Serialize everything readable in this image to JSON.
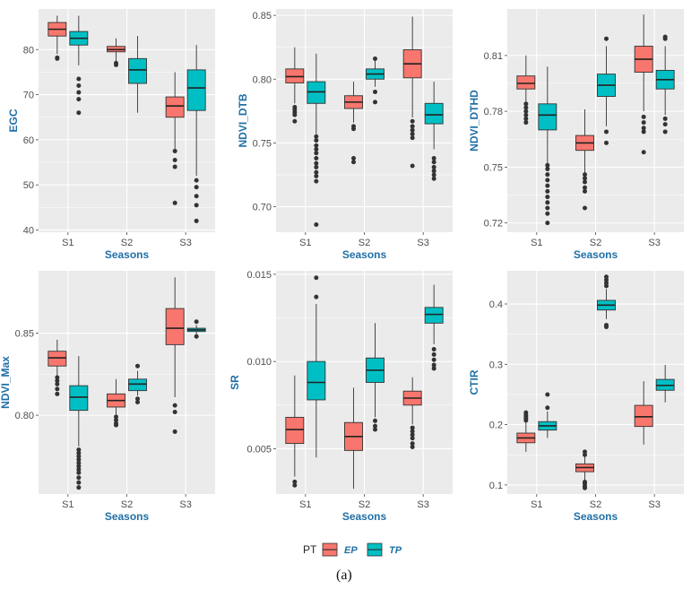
{
  "chart_data": [
    {
      "type": "box",
      "xlabel": "Seasons",
      "ylabel": "EGC",
      "categories": [
        "S1",
        "S2",
        "S3"
      ],
      "ylim": [
        39.5,
        89
      ],
      "yticks": [
        40,
        50,
        60,
        70,
        80
      ],
      "tick_decimals": 0,
      "series": [
        {
          "name": "EP",
          "boxes": [
            {
              "whisker_low": 79,
              "q1": 83,
              "median": 84.5,
              "q3": 86,
              "whisker_high": 87.5,
              "outliers": [
                78,
                78.2
              ]
            },
            {
              "whisker_low": 77.2,
              "q1": 79.5,
              "median": 80,
              "q3": 80.7,
              "whisker_high": 82.5,
              "outliers": [
                77,
                76.6
              ]
            },
            {
              "whisker_low": 58,
              "q1": 65,
              "median": 67.5,
              "q3": 69.5,
              "whisker_high": 75,
              "outliers": [
                57.5,
                55.5,
                54,
                46
              ]
            }
          ]
        },
        {
          "name": "TP",
          "boxes": [
            {
              "whisker_low": 76.5,
              "q1": 81,
              "median": 82.5,
              "q3": 84,
              "whisker_high": 87.5,
              "outliers": [
                73.5,
                72,
                70.5,
                69,
                66
              ]
            },
            {
              "whisker_low": 66,
              "q1": 72.5,
              "median": 75.5,
              "q3": 78,
              "whisker_high": 83,
              "outliers": []
            },
            {
              "whisker_low": 52,
              "q1": 66.5,
              "median": 71.5,
              "q3": 75.5,
              "whisker_high": 81,
              "outliers": [
                51,
                49.5,
                47.5,
                45.5,
                42
              ]
            }
          ]
        }
      ]
    },
    {
      "type": "box",
      "xlabel": "Seasons",
      "ylabel": "NDVI_DTB",
      "categories": [
        "S1",
        "S2",
        "S3"
      ],
      "ylim": [
        0.68,
        0.855
      ],
      "yticks": [
        0.7,
        0.75,
        0.8,
        0.85
      ],
      "tick_decimals": 2,
      "series": [
        {
          "name": "EP",
          "boxes": [
            {
              "whisker_low": 0.781,
              "q1": 0.797,
              "median": 0.802,
              "q3": 0.808,
              "whisker_high": 0.825,
              "outliers": [
                0.778,
                0.776,
                0.774,
                0.772,
                0.767
              ]
            },
            {
              "whisker_low": 0.766,
              "q1": 0.777,
              "median": 0.782,
              "q3": 0.787,
              "whisker_high": 0.798,
              "outliers": [
                0.763,
                0.761,
                0.738,
                0.735
              ]
            },
            {
              "whisker_low": 0.77,
              "q1": 0.801,
              "median": 0.812,
              "q3": 0.823,
              "whisker_high": 0.849,
              "outliers": [
                0.767,
                0.763,
                0.76,
                0.757,
                0.754,
                0.732
              ]
            }
          ]
        },
        {
          "name": "TP",
          "boxes": [
            {
              "whisker_low": 0.757,
              "q1": 0.781,
              "median": 0.79,
              "q3": 0.798,
              "whisker_high": 0.82,
              "outliers": [
                0.755,
                0.752,
                0.748,
                0.745,
                0.742,
                0.738,
                0.734,
                0.731,
                0.727,
                0.724,
                0.72,
                0.686
              ]
            },
            {
              "whisker_low": 0.794,
              "q1": 0.8,
              "median": 0.804,
              "q3": 0.808,
              "whisker_high": 0.816,
              "outliers": [
                0.816,
                0.79,
                0.782
              ]
            },
            {
              "whisker_low": 0.745,
              "q1": 0.765,
              "median": 0.772,
              "q3": 0.781,
              "whisker_high": 0.798,
              "outliers": [
                0.738,
                0.735,
                0.731,
                0.728,
                0.725,
                0.722
              ]
            }
          ]
        }
      ]
    },
    {
      "type": "box",
      "xlabel": "Seasons",
      "ylabel": "NDVI_DTHD",
      "categories": [
        "S1",
        "S2",
        "S3"
      ],
      "ylim": [
        0.715,
        0.835
      ],
      "yticks": [
        0.72,
        0.75,
        0.78,
        0.81
      ],
      "tick_decimals": 2,
      "series": [
        {
          "name": "EP",
          "boxes": [
            {
              "whisker_low": 0.785,
              "q1": 0.792,
              "median": 0.795,
              "q3": 0.799,
              "whisker_high": 0.81,
              "outliers": [
                0.784,
                0.782,
                0.78,
                0.778,
                0.776,
                0.774
              ]
            },
            {
              "whisker_low": 0.747,
              "q1": 0.759,
              "median": 0.763,
              "q3": 0.767,
              "whisker_high": 0.781,
              "outliers": [
                0.746,
                0.744,
                0.742,
                0.739,
                0.737,
                0.728
              ]
            },
            {
              "whisker_low": 0.78,
              "q1": 0.801,
              "median": 0.808,
              "q3": 0.815,
              "whisker_high": 0.832,
              "outliers": [
                0.777,
                0.774,
                0.771,
                0.769,
                0.758
              ]
            }
          ]
        },
        {
          "name": "TP",
          "boxes": [
            {
              "whisker_low": 0.752,
              "q1": 0.77,
              "median": 0.778,
              "q3": 0.784,
              "whisker_high": 0.804,
              "outliers": [
                0.751,
                0.749,
                0.746,
                0.743,
                0.74,
                0.737,
                0.734,
                0.731,
                0.728,
                0.725,
                0.72
              ]
            },
            {
              "whisker_low": 0.772,
              "q1": 0.788,
              "median": 0.794,
              "q3": 0.8,
              "whisker_high": 0.815,
              "outliers": [
                0.819,
                0.769,
                0.763
              ]
            },
            {
              "whisker_low": 0.778,
              "q1": 0.792,
              "median": 0.797,
              "q3": 0.802,
              "whisker_high": 0.815,
              "outliers": [
                0.82,
                0.819,
                0.776,
                0.773,
                0.769
              ]
            }
          ]
        }
      ]
    },
    {
      "type": "box",
      "xlabel": "Seasons",
      "ylabel": "NDVI_Max",
      "categories": [
        "S1",
        "S2",
        "S3"
      ],
      "ylim": [
        0.752,
        0.888
      ],
      "yticks": [
        0.8,
        0.85
      ],
      "tick_decimals": 2,
      "series": [
        {
          "name": "EP",
          "boxes": [
            {
              "whisker_low": 0.824,
              "q1": 0.83,
              "median": 0.835,
              "q3": 0.839,
              "whisker_high": 0.846,
              "outliers": [
                0.823,
                0.821,
                0.819,
                0.816,
                0.813
              ]
            },
            {
              "whisker_low": 0.8,
              "q1": 0.805,
              "median": 0.809,
              "q3": 0.813,
              "whisker_high": 0.822,
              "outliers": [
                0.799,
                0.797,
                0.795,
                0.794
              ]
            },
            {
              "whisker_low": 0.811,
              "q1": 0.843,
              "median": 0.853,
              "q3": 0.865,
              "whisker_high": 0.884,
              "outliers": [
                0.806,
                0.802,
                0.79
              ]
            }
          ]
        },
        {
          "name": "TP",
          "boxes": [
            {
              "whisker_low": 0.781,
              "q1": 0.803,
              "median": 0.811,
              "q3": 0.818,
              "whisker_high": 0.836,
              "outliers": [
                0.779,
                0.777,
                0.775,
                0.773,
                0.771,
                0.769,
                0.767,
                0.765,
                0.762,
                0.759,
                0.756
              ]
            },
            {
              "whisker_low": 0.812,
              "q1": 0.815,
              "median": 0.819,
              "q3": 0.822,
              "whisker_high": 0.827,
              "outliers": [
                0.83,
                0.81,
                0.808
              ]
            },
            {
              "whisker_low": 0.849,
              "q1": 0.851,
              "median": 0.852,
              "q3": 0.853,
              "whisker_high": 0.855,
              "outliers": [
                0.857,
                0.848
              ]
            }
          ]
        }
      ]
    },
    {
      "type": "box",
      "xlabel": "Seasons",
      "ylabel": "SR",
      "categories": [
        "S1",
        "S2",
        "S3"
      ],
      "ylim": [
        0.0024,
        0.0152
      ],
      "yticks": [
        0.005,
        0.01,
        0.015
      ],
      "tick_decimals": 3,
      "series": [
        {
          "name": "EP",
          "boxes": [
            {
              "whisker_low": 0.0034,
              "q1": 0.0053,
              "median": 0.0061,
              "q3": 0.0068,
              "whisker_high": 0.0092,
              "outliers": [
                0.0031,
                0.0029
              ]
            },
            {
              "whisker_low": 0.0027,
              "q1": 0.0049,
              "median": 0.0057,
              "q3": 0.0065,
              "whisker_high": 0.0085,
              "outliers": []
            },
            {
              "whisker_low": 0.0064,
              "q1": 0.0075,
              "median": 0.0079,
              "q3": 0.0083,
              "whisker_high": 0.0091,
              "outliers": [
                0.0062,
                0.006,
                0.0058,
                0.0056,
                0.0053,
                0.0051
              ]
            }
          ]
        },
        {
          "name": "TP",
          "boxes": [
            {
              "whisker_low": 0.0045,
              "q1": 0.0078,
              "median": 0.0088,
              "q3": 0.01,
              "whisker_high": 0.0133,
              "outliers": [
                0.0137,
                0.0148
              ]
            },
            {
              "whisker_low": 0.0068,
              "q1": 0.0088,
              "median": 0.0095,
              "q3": 0.0102,
              "whisker_high": 0.0122,
              "outliers": [
                0.0066,
                0.0063,
                0.0061
              ]
            },
            {
              "whisker_low": 0.011,
              "q1": 0.0122,
              "median": 0.0127,
              "q3": 0.0131,
              "whisker_high": 0.0144,
              "outliers": [
                0.0107,
                0.0104,
                0.0101,
                0.0098,
                0.0096
              ]
            }
          ]
        }
      ]
    },
    {
      "type": "box",
      "xlabel": "Seasons",
      "ylabel": "CTIR",
      "categories": [
        "S1",
        "S2",
        "S3"
      ],
      "ylim": [
        0.085,
        0.455
      ],
      "yticks": [
        0.1,
        0.2,
        0.3,
        0.4
      ],
      "tick_decimals": 1,
      "series": [
        {
          "name": "EP",
          "boxes": [
            {
              "whisker_low": 0.155,
              "q1": 0.17,
              "median": 0.178,
              "q3": 0.186,
              "whisker_high": 0.204,
              "outliers": [
                0.207,
                0.21,
                0.213,
                0.216,
                0.22
              ]
            },
            {
              "whisker_low": 0.108,
              "q1": 0.122,
              "median": 0.129,
              "q3": 0.135,
              "whisker_high": 0.148,
              "outliers": [
                0.105,
                0.102,
                0.098,
                0.095,
                0.15,
                0.155
              ]
            },
            {
              "whisker_low": 0.167,
              "q1": 0.197,
              "median": 0.213,
              "q3": 0.232,
              "whisker_high": 0.272,
              "outliers": []
            }
          ]
        },
        {
          "name": "TP",
          "boxes": [
            {
              "whisker_low": 0.178,
              "q1": 0.191,
              "median": 0.198,
              "q3": 0.205,
              "whisker_high": 0.222,
              "outliers": [
                0.228,
                0.25
              ]
            },
            {
              "whisker_low": 0.375,
              "q1": 0.39,
              "median": 0.398,
              "q3": 0.406,
              "whisker_high": 0.425,
              "outliers": [
                0.43,
                0.435,
                0.44,
                0.445,
                0.365,
                0.362
              ]
            },
            {
              "whisker_low": 0.237,
              "q1": 0.257,
              "median": 0.265,
              "q3": 0.275,
              "whisker_high": 0.299,
              "outliers": []
            }
          ]
        }
      ]
    }
  ],
  "legend": {
    "title": "PT",
    "items": [
      {
        "label": "EP",
        "color": "#F8766D"
      },
      {
        "label": "TP",
        "color": "#00BFC4"
      }
    ]
  },
  "caption": "(a)",
  "colors": {
    "EP": "#F8766D",
    "TP": "#00BFC4",
    "panel_bg": "#EBEBEB",
    "grid": "#FFFFFF",
    "axis_title": "#1F6FA6",
    "point": "#333333"
  }
}
